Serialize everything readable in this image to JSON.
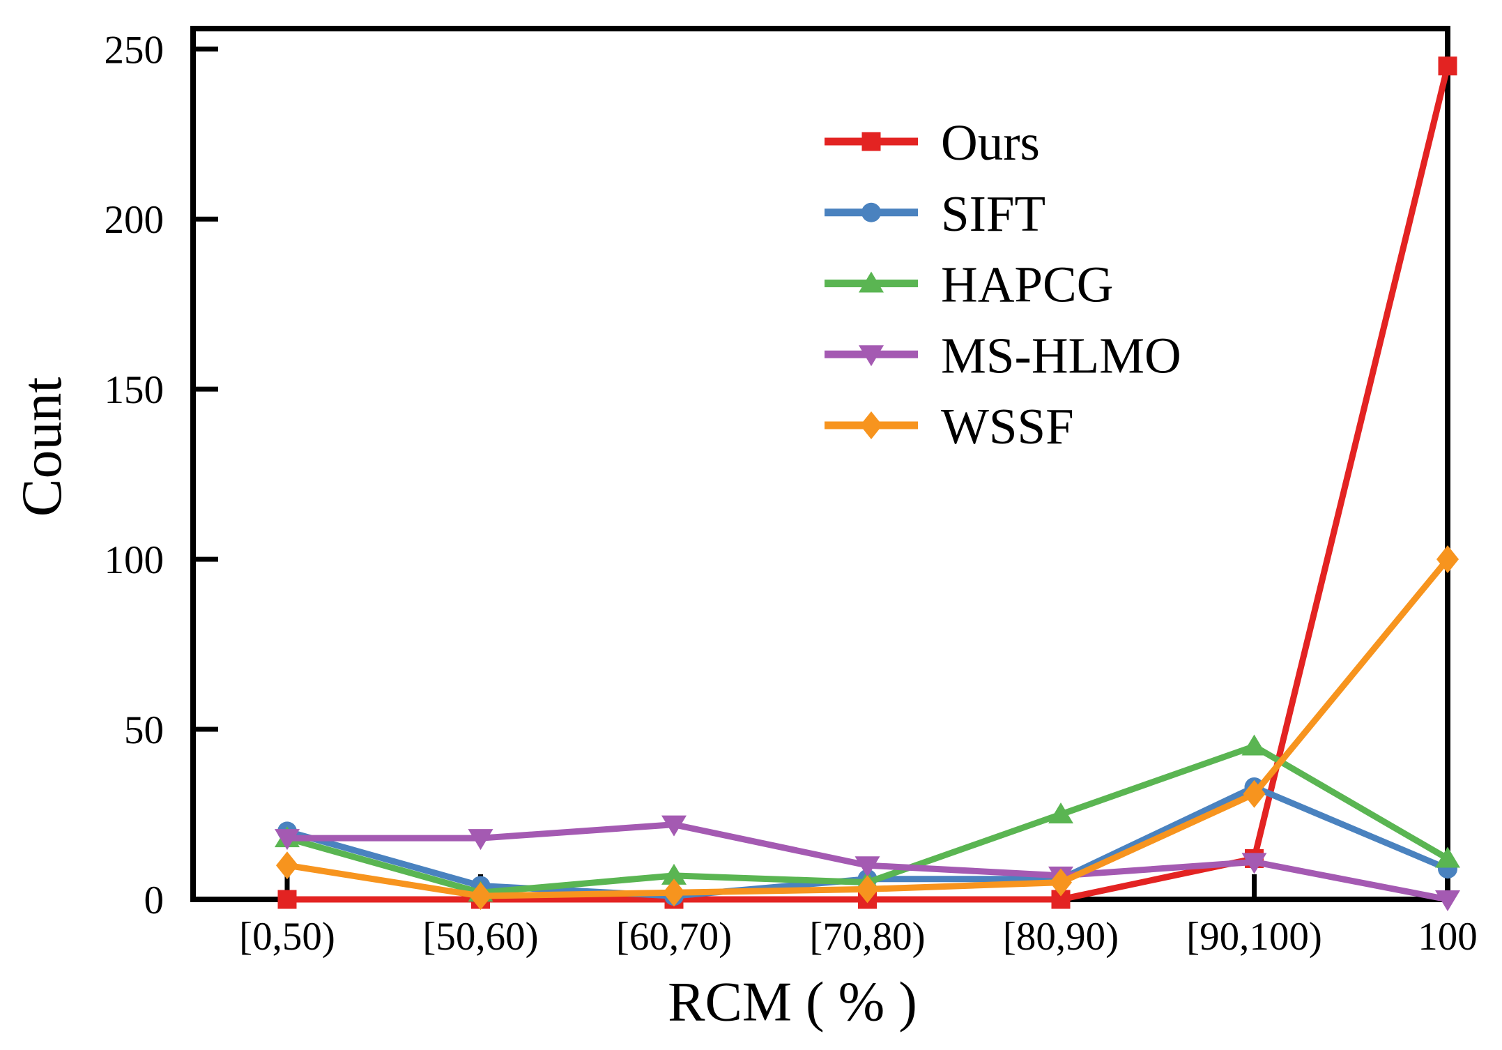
{
  "chart_data": {
    "type": "line",
    "title": "",
    "xlabel": "RCM ( % )",
    "ylabel": "Count",
    "categories": [
      "[0,50)",
      "[50,60)",
      "[60,70)",
      "[70,80)",
      "[80,90)",
      "[90,100)",
      "100"
    ],
    "series": [
      {
        "name": "Ours",
        "color": "#e32322",
        "marker": "square",
        "values": [
          0,
          0,
          0,
          0,
          0,
          12,
          245
        ]
      },
      {
        "name": "SIFT",
        "color": "#4a82bf",
        "marker": "circle",
        "values": [
          20,
          4,
          1,
          6,
          6,
          33,
          9
        ]
      },
      {
        "name": "HAPCG",
        "color": "#5ab552",
        "marker": "triangle-up",
        "values": [
          18,
          2,
          7,
          5,
          25,
          45,
          12
        ]
      },
      {
        "name": "MS-HLMO",
        "color": "#a45ab2",
        "marker": "triangle-down",
        "values": [
          18,
          18,
          22,
          10,
          7,
          11,
          0
        ]
      },
      {
        "name": "WSSF",
        "color": "#f7941e",
        "marker": "diamond",
        "values": [
          10,
          1,
          2,
          3,
          5,
          31,
          100
        ]
      }
    ],
    "yticks": [
      0,
      50,
      100,
      150,
      200,
      250
    ],
    "ylim": [
      0,
      256
    ],
    "grid": false,
    "legend_position": "upper-right-inside",
    "axis_color": "#000000"
  }
}
